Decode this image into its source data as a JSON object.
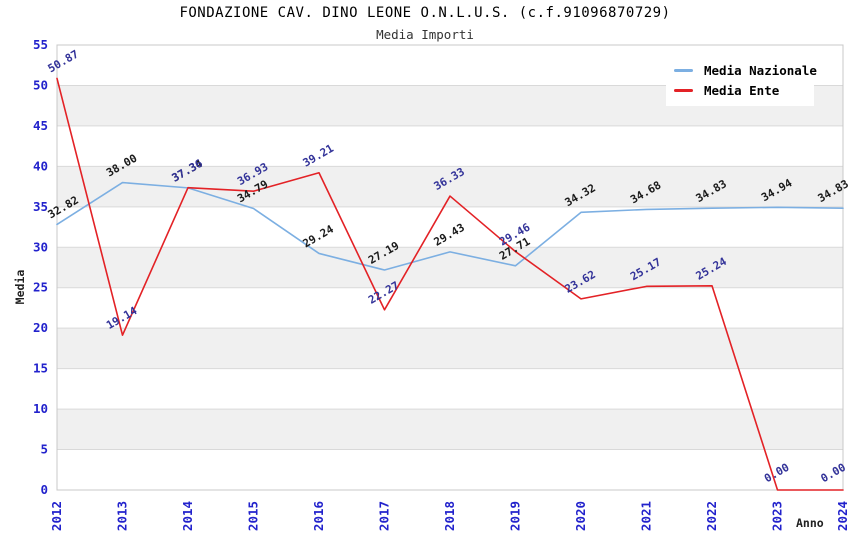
{
  "title": "FONDAZIONE CAV. DINO LEONE O.N.L.U.S. (c.f.91096870729)",
  "subtitle": "Media Importi",
  "axes": {
    "y_title": "Media",
    "x_title": "Anno",
    "y_min": 0,
    "y_max": 55,
    "y_tick_step": 5
  },
  "legend": {
    "items": [
      {
        "label": "Media Nazionale"
      },
      {
        "label": "Media Ente"
      }
    ]
  },
  "colors": {
    "nazionale_line": "#7cafe2",
    "ente_line": "#e32226",
    "nazionale_label": "#1a1a1a",
    "ente_label": "#333399",
    "tick_label": "#2222cc",
    "band": "#f0f0f0",
    "grid": "#d9d9d9",
    "border": "#c8c8c8",
    "background": "#ffffff"
  },
  "chart_data": {
    "type": "line",
    "title": "FONDAZIONE CAV. DINO LEONE O.N.L.U.S. (c.f.91096870729)",
    "subtitle": "Media Importi",
    "xlabel": "Anno",
    "ylabel": "Media",
    "x": [
      2012,
      2013,
      2014,
      2015,
      2016,
      2017,
      2018,
      2019,
      2020,
      2021,
      2022,
      2023,
      2024
    ],
    "ylim": [
      0,
      55
    ],
    "grid": "horizontal-bands",
    "legend_position": "top-right",
    "series": [
      {
        "name": "Media Nazionale",
        "color": "#7cafe2",
        "label_color": "#1a1a1a",
        "values": [
          32.82,
          38.0,
          37.34,
          34.79,
          29.24,
          27.19,
          29.43,
          27.71,
          34.32,
          34.68,
          34.83,
          34.94,
          34.83
        ]
      },
      {
        "name": "Media Ente",
        "color": "#e32226",
        "label_color": "#333399",
        "values": [
          50.87,
          19.14,
          37.36,
          36.93,
          39.21,
          22.27,
          36.33,
          29.46,
          23.62,
          25.17,
          25.24,
          0.0,
          0.0
        ]
      }
    ]
  }
}
